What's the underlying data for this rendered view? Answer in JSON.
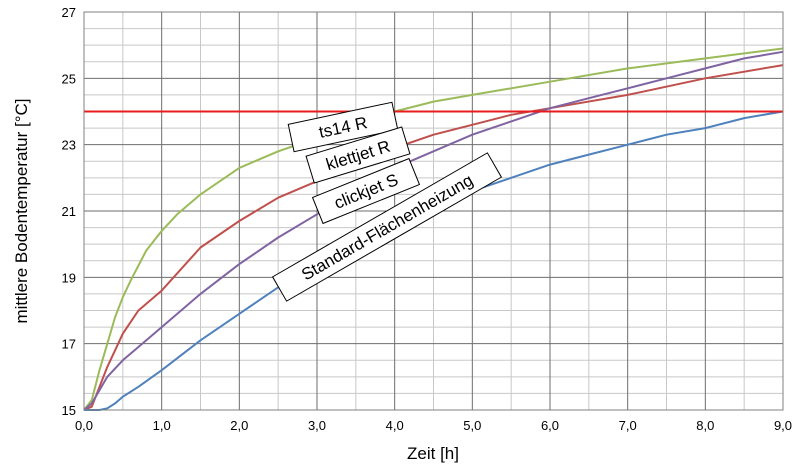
{
  "chart_data": {
    "type": "line",
    "xlabel": "Zeit [h]",
    "ylabel": "mittlere Bodentemperatur [°C]",
    "xlim": [
      0,
      9
    ],
    "ylim": [
      15,
      27
    ],
    "x_ticks": [
      "0,0",
      "1,0",
      "2,0",
      "3,0",
      "4,0",
      "5,0",
      "6,0",
      "7,0",
      "8,0",
      "9,0"
    ],
    "y_ticks": [
      "15",
      "17",
      "19",
      "21",
      "23",
      "25",
      "27"
    ],
    "grid": true,
    "minor_y_step": 0.5,
    "minor_x_step": 0.5,
    "threshold": {
      "value": 24,
      "color": "#e81c1c"
    },
    "series": [
      {
        "name": "ts14 R",
        "color": "#9bbb59",
        "x": [
          0,
          0.1,
          0.2,
          0.3,
          0.4,
          0.5,
          0.6,
          0.8,
          1.0,
          1.2,
          1.5,
          2.0,
          2.5,
          3.0,
          3.5,
          4.0,
          4.5,
          5.0,
          6.0,
          7.0,
          8.0,
          9.0
        ],
        "y": [
          15,
          15.3,
          16.2,
          17.0,
          17.8,
          18.4,
          18.9,
          19.8,
          20.4,
          20.9,
          21.5,
          22.3,
          22.8,
          23.2,
          23.6,
          24.0,
          24.3,
          24.5,
          24.9,
          25.3,
          25.6,
          25.9
        ]
      },
      {
        "name": "klettjet R",
        "color": "#c0504d",
        "x": [
          0,
          0.1,
          0.2,
          0.3,
          0.4,
          0.5,
          0.7,
          1.0,
          1.5,
          2.0,
          2.5,
          3.0,
          3.5,
          4.0,
          4.5,
          5.0,
          5.5,
          6.0,
          7.0,
          8.0,
          9.0
        ],
        "y": [
          15,
          15.1,
          15.7,
          16.3,
          16.8,
          17.3,
          18.0,
          18.6,
          19.9,
          20.7,
          21.4,
          21.9,
          22.5,
          22.9,
          23.3,
          23.6,
          23.9,
          24.1,
          24.5,
          25.0,
          25.4
        ]
      },
      {
        "name": "clickjet S",
        "color": "#8064a2",
        "x": [
          0,
          0.1,
          0.2,
          0.3,
          0.5,
          0.7,
          1.0,
          1.5,
          2.0,
          2.5,
          3.0,
          3.5,
          4.0,
          4.5,
          5.0,
          5.5,
          6.0,
          6.5,
          7.0,
          7.5,
          8.0,
          8.5,
          9.0
        ],
        "y": [
          15,
          15.2,
          15.6,
          16.0,
          16.5,
          16.9,
          17.5,
          18.5,
          19.4,
          20.2,
          20.9,
          21.6,
          22.3,
          22.8,
          23.3,
          23.7,
          24.1,
          24.4,
          24.7,
          25.0,
          25.3,
          25.6,
          25.8
        ]
      },
      {
        "name": "Standard-Flächenheizung",
        "color": "#4f81bd",
        "x": [
          0,
          0.2,
          0.3,
          0.4,
          0.5,
          0.7,
          1.0,
          1.5,
          2.0,
          2.5,
          3.0,
          3.5,
          4.0,
          4.5,
          5.0,
          5.5,
          6.0,
          6.5,
          7.0,
          7.5,
          8.0,
          8.5,
          9.0
        ],
        "y": [
          15,
          15,
          15.05,
          15.2,
          15.4,
          15.7,
          16.2,
          17.1,
          17.9,
          18.7,
          19.4,
          20.0,
          20.6,
          21.1,
          21.6,
          22.0,
          22.4,
          22.7,
          23.0,
          23.3,
          23.5,
          23.8,
          24.0
        ]
      }
    ],
    "callouts": [
      "ts14 R",
      "klettjet R",
      "clickjet S",
      "Standard-Flächenheizung"
    ]
  }
}
